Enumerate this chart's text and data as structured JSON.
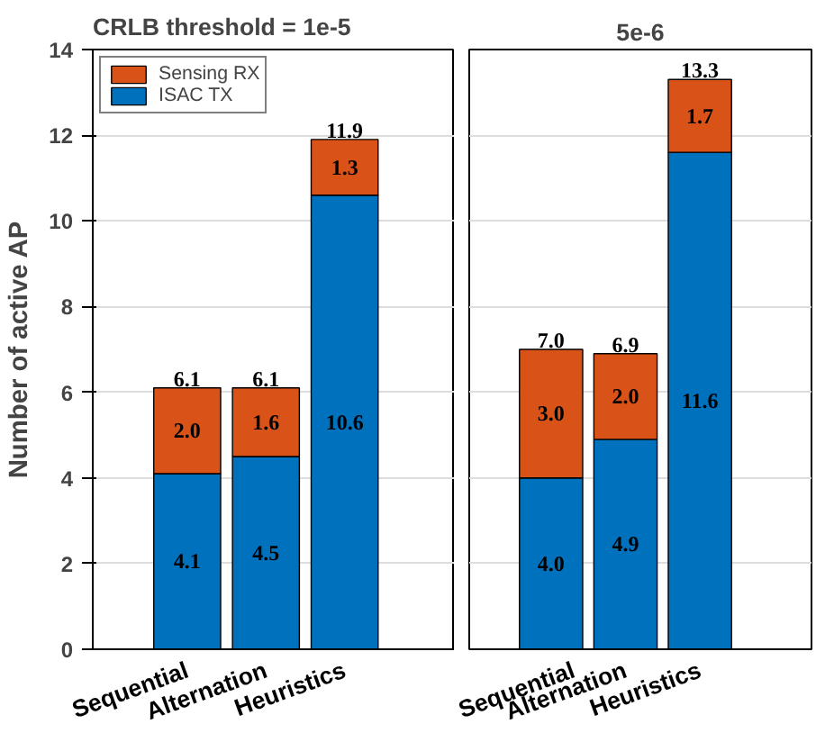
{
  "chart_data": [
    {
      "type": "bar",
      "title": "CRLB threshold = 1e-5",
      "ylabel": "Number of active AP",
      "categories": [
        "Sequential",
        "Alternation",
        "Heuristics"
      ],
      "stacked": true,
      "ylim": [
        0,
        14
      ],
      "yticks": [
        0,
        2,
        4,
        6,
        8,
        10,
        12,
        14
      ],
      "grid": "y",
      "legend": "top left",
      "series": [
        {
          "name": "ISAC TX",
          "color": "#0072bd",
          "values": [
            4.1,
            4.5,
            10.6
          ],
          "value_labels": [
            "4.1",
            "4.5",
            "10.6"
          ]
        },
        {
          "name": "Sensing RX",
          "color": "#d95319",
          "values": [
            2.0,
            1.6,
            1.3
          ],
          "value_labels": [
            "2.0",
            "1.6",
            "1.3"
          ]
        }
      ],
      "totals": [
        "6.1",
        "6.1",
        "11.9"
      ]
    },
    {
      "type": "bar",
      "title": "5e-6",
      "categories": [
        "Sequential",
        "Alternation",
        "Heuristics"
      ],
      "stacked": true,
      "ylim": [
        0,
        14
      ],
      "yticks": [
        0,
        2,
        4,
        6,
        8,
        10,
        12,
        14
      ],
      "grid": "y",
      "tick_labels": "x",
      "series": [
        {
          "color": "#0072bd",
          "values": [
            4.0,
            4.9,
            11.6
          ],
          "value_labels": [
            "4.0",
            "4.9",
            "11.6"
          ]
        },
        {
          "color": "#d95319",
          "values": [
            3.0,
            2.0,
            1.7
          ],
          "value_labels": [
            "3.0",
            "2.0",
            "1.7"
          ]
        }
      ],
      "totals": [
        "7.0",
        "6.9",
        "13.3"
      ]
    }
  ]
}
